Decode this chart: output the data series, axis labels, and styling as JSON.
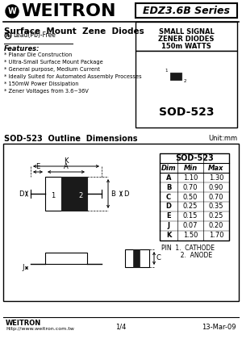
{
  "title_company": "WEITRON",
  "series": "EDZ3.6B Series",
  "subtitle": "Surface  Mount  Zene  Diodes",
  "lead_free": "Lead(Pb)-Free",
  "package_name": "SOD-523",
  "small_signal_text": [
    "SMALL SIGNAL",
    "ZENER DIODES",
    "150m WATTS"
  ],
  "features_title": "Features:",
  "features": [
    "* Planar Die Construction",
    "* Ultra-Small Surface Mount Package",
    "* General purpose, Medium Current",
    "* Ideally Suited for Automated Assembly Processes",
    "* 150mW Power Dissipation",
    "* Zener Voltages from 3.6~36V"
  ],
  "outline_title": "SOD-523  Outline  Dimensions",
  "unit_label": "Unit:mm",
  "table_title": "SOD-523",
  "table_headers": [
    "Dim",
    "Min",
    "Max"
  ],
  "table_rows": [
    [
      "A",
      "1.10",
      "1.30"
    ],
    [
      "B",
      "0.70",
      "0.90"
    ],
    [
      "C",
      "0.50",
      "0.70"
    ],
    [
      "D",
      "0.25",
      "0.35"
    ],
    [
      "E",
      "0.15",
      "0.25"
    ],
    [
      "J",
      "0.07",
      "0.20"
    ],
    [
      "K",
      "1.50",
      "1.70"
    ]
  ],
  "pin_info": [
    "PIN  1.  CATHODE",
    "          2.  ANODE"
  ],
  "footer_company": "WEITRON",
  "footer_url": "http://www.weitron.com.tw",
  "footer_page": "1/4",
  "footer_date": "13-Mar-09",
  "bg_color": "#ffffff",
  "border_color": "#000000",
  "text_color": "#000000"
}
